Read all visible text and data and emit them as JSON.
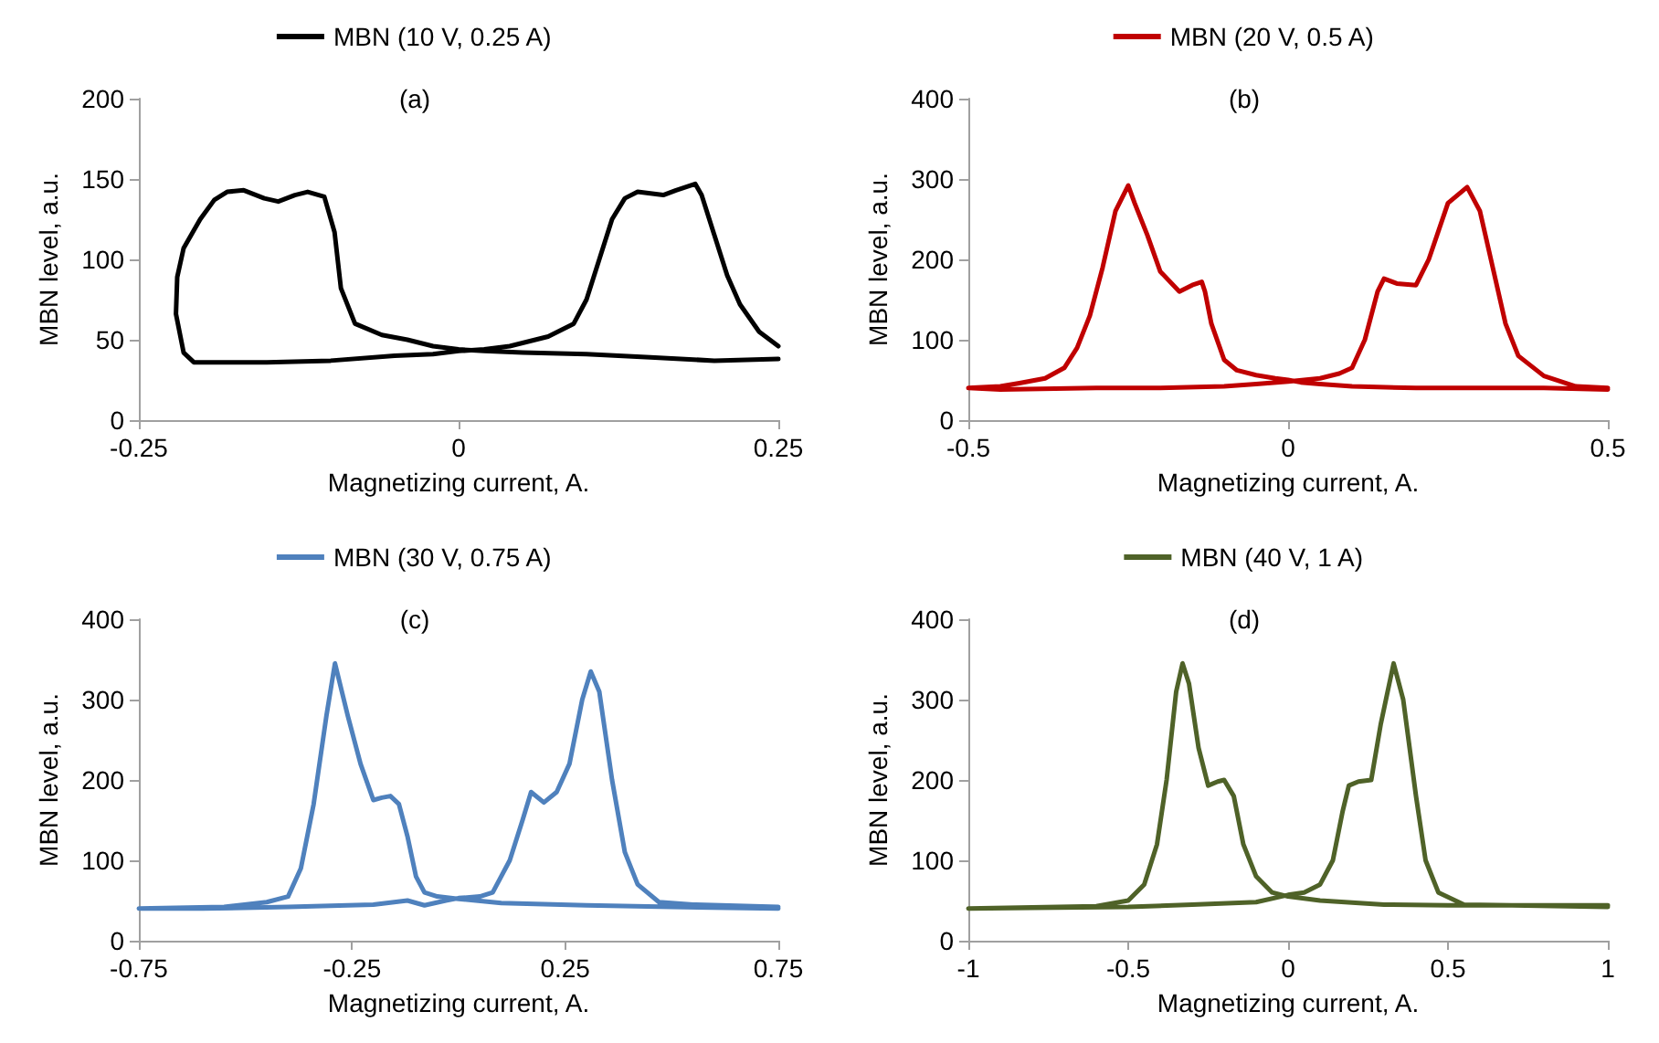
{
  "chart_data": [
    {
      "type": "line",
      "title": "(a)",
      "xlabel": "Magnetizing current, A.",
      "ylabel": "MBN level, a.u.",
      "xlim": [
        -0.25,
        0.25
      ],
      "xticks": [
        -0.25,
        0,
        0.25
      ],
      "ylim": [
        0,
        200
      ],
      "yticks": [
        0,
        50,
        100,
        150,
        200
      ],
      "grid": false,
      "legend": "top",
      "marker": "none",
      "line_style": "solid",
      "series": [
        {
          "name": "MBN (10 V, 0.25 A)",
          "color": "#000000",
          "x": [
            0.25,
            0.2,
            0.15,
            0.1,
            0.05,
            0.02,
            0,
            -0.02,
            -0.04,
            -0.06,
            -0.081,
            -0.092,
            -0.097,
            -0.105,
            -0.118,
            -0.128,
            -0.141,
            -0.152,
            -0.168,
            -0.181,
            -0.191,
            -0.202,
            -0.215,
            -0.22,
            -0.221,
            -0.215,
            -0.207,
            -0.15,
            -0.1,
            -0.05,
            -0.02,
            0,
            0.02,
            0.04,
            0.07,
            0.09,
            0.1,
            0.11,
            0.12,
            0.13,
            0.14,
            0.16,
            0.17,
            0.185,
            0.19,
            0.2,
            0.21,
            0.22,
            0.235,
            0.25
          ],
          "values": [
            38,
            37,
            39,
            41,
            42,
            43,
            44,
            46,
            50,
            53,
            60,
            82,
            117,
            139,
            142,
            140,
            136,
            138,
            143,
            142,
            137,
            125,
            107,
            89,
            66,
            42,
            36,
            36,
            37,
            40,
            41,
            43,
            44,
            46,
            52,
            60,
            75,
            100,
            125,
            138,
            142,
            140,
            143,
            147,
            140,
            115,
            90,
            72,
            55,
            46
          ]
        }
      ]
    },
    {
      "type": "line",
      "title": "(b)",
      "xlabel": "Magnetizing current, A.",
      "ylabel": "MBN level, a.u.",
      "xlim": [
        -0.5,
        0.5
      ],
      "xticks": [
        -0.5,
        0,
        0.5
      ],
      "ylim": [
        0,
        400
      ],
      "yticks": [
        0,
        100,
        200,
        300,
        400
      ],
      "grid": false,
      "legend": "top",
      "marker": "none",
      "line_style": "solid",
      "series": [
        {
          "name": "MBN (20 V, 0.5 A)",
          "color": "#c00000",
          "x": [
            0.5,
            0.4,
            0.3,
            0.2,
            0.1,
            0.05,
            0.02,
            0,
            -0.02,
            -0.05,
            -0.08,
            -0.1,
            -0.12,
            -0.13,
            -0.135,
            -0.15,
            -0.17,
            -0.2,
            -0.22,
            -0.24,
            -0.25,
            -0.27,
            -0.29,
            -0.31,
            -0.33,
            -0.35,
            -0.38,
            -0.42,
            -0.45,
            -0.5,
            -0.45,
            -0.3,
            -0.2,
            -0.1,
            -0.05,
            0,
            0.05,
            0.08,
            0.1,
            0.12,
            0.14,
            0.15,
            0.17,
            0.2,
            0.22,
            0.25,
            0.28,
            0.3,
            0.32,
            0.34,
            0.36,
            0.4,
            0.45,
            0.5
          ],
          "values": [
            38,
            40,
            40,
            40,
            42,
            45,
            47,
            50,
            52,
            56,
            62,
            75,
            120,
            160,
            172,
            168,
            160,
            185,
            230,
            270,
            292,
            260,
            190,
            130,
            90,
            65,
            52,
            46,
            42,
            40,
            38,
            40,
            40,
            42,
            45,
            48,
            52,
            58,
            65,
            100,
            160,
            176,
            170,
            168,
            200,
            270,
            290,
            260,
            190,
            120,
            80,
            55,
            42,
            40
          ]
        }
      ]
    },
    {
      "type": "line",
      "title": "(c)",
      "xlabel": "Magnetizing current, A.",
      "ylabel": "MBN level, a.u.",
      "xlim": [
        -0.75,
        0.75
      ],
      "xticks": [
        -0.75,
        -0.25,
        0.25,
        0.75
      ],
      "ylim": [
        0,
        400
      ],
      "yticks": [
        0,
        100,
        200,
        300,
        400
      ],
      "grid": false,
      "legend": "top",
      "marker": "none",
      "line_style": "solid",
      "series": [
        {
          "name": "MBN (30 V, 0.75 A)",
          "color": "#4f81bd",
          "x": [
            0.75,
            0.5,
            0.3,
            0.1,
            0,
            -0.05,
            -0.08,
            -0.1,
            -0.12,
            -0.14,
            -0.16,
            -0.18,
            -0.2,
            -0.23,
            -0.26,
            -0.29,
            -0.31,
            -0.34,
            -0.37,
            -0.4,
            -0.45,
            -0.55,
            -0.75,
            -0.6,
            -0.4,
            -0.2,
            -0.12,
            -0.08,
            -0.03,
            0,
            0.05,
            0.08,
            0.12,
            0.15,
            0.17,
            0.2,
            0.23,
            0.26,
            0.29,
            0.31,
            0.33,
            0.36,
            0.39,
            0.42,
            0.47,
            0.55,
            0.75
          ],
          "values": [
            40,
            42,
            44,
            47,
            52,
            55,
            60,
            80,
            130,
            170,
            180,
            178,
            175,
            220,
            280,
            345,
            280,
            170,
            90,
            55,
            48,
            42,
            40,
            40,
            42,
            45,
            50,
            44,
            50,
            53,
            55,
            60,
            100,
            150,
            185,
            172,
            185,
            220,
            300,
            335,
            310,
            200,
            110,
            70,
            48,
            45,
            42
          ]
        }
      ]
    },
    {
      "type": "line",
      "title": "(d)",
      "xlabel": "Magnetizing current, A.",
      "ylabel": "MBN level, a.u.",
      "xlim": [
        -1,
        1
      ],
      "xticks": [
        -1,
        -0.5,
        0,
        0.5,
        1
      ],
      "ylim": [
        0,
        400
      ],
      "yticks": [
        0,
        100,
        200,
        300,
        400
      ],
      "grid": false,
      "legend": "top",
      "marker": "none",
      "line_style": "solid",
      "series": [
        {
          "name": "MBN (40 V, 1 A)",
          "color": "#4f6228",
          "x": [
            1,
            0.7,
            0.5,
            0.3,
            0.1,
            0,
            -0.05,
            -0.1,
            -0.14,
            -0.17,
            -0.2,
            -0.22,
            -0.25,
            -0.28,
            -0.31,
            -0.33,
            -0.35,
            -0.38,
            -0.41,
            -0.45,
            -0.5,
            -0.6,
            -1,
            -0.8,
            -0.5,
            -0.3,
            -0.1,
            0,
            0.05,
            0.1,
            0.14,
            0.17,
            0.19,
            0.22,
            0.26,
            0.29,
            0.33,
            0.36,
            0.4,
            0.43,
            0.47,
            0.55,
            0.7,
            1
          ],
          "values": [
            42,
            44,
            44,
            45,
            50,
            55,
            60,
            80,
            120,
            180,
            200,
            198,
            193,
            240,
            320,
            345,
            310,
            200,
            120,
            70,
            50,
            43,
            40,
            41,
            42,
            45,
            48,
            57,
            60,
            70,
            100,
            160,
            193,
            198,
            200,
            270,
            345,
            300,
            180,
            100,
            60,
            45,
            44,
            44
          ]
        }
      ]
    }
  ]
}
